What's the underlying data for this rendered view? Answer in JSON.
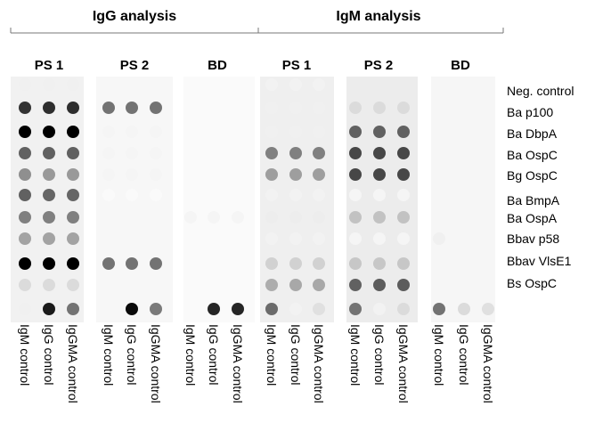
{
  "groups": [
    {
      "title": "IgG analysis"
    },
    {
      "title": "IgM analysis"
    }
  ],
  "strips": [
    {
      "label": "PS 1",
      "background": "#f1f1f1",
      "intensity": [
        [
          0.06,
          0.06,
          0.06
        ],
        [
          0.8,
          0.82,
          0.82
        ],
        [
          1.0,
          1.0,
          1.0
        ],
        [
          0.62,
          0.62,
          0.62
        ],
        [
          0.44,
          0.4,
          0.4
        ],
        [
          0.62,
          0.6,
          0.6
        ],
        [
          0.5,
          0.5,
          0.5
        ],
        [
          0.36,
          0.36,
          0.36
        ],
        [
          1.0,
          1.0,
          1.0
        ],
        [
          0.14,
          0.14,
          0.14
        ],
        [
          0.06,
          0.9,
          0.55
        ]
      ]
    },
    {
      "label": "PS 2",
      "background": "#f7f7f7",
      "intensity": [
        [
          0.0,
          0.0,
          0.0
        ],
        [
          0.55,
          0.55,
          0.55
        ],
        [
          0.04,
          0.04,
          0.04
        ],
        [
          0.04,
          0.04,
          0.04
        ],
        [
          0.04,
          0.04,
          0.04
        ],
        [
          0.02,
          0.02,
          0.02
        ],
        [
          0.0,
          0.0,
          0.0
        ],
        [
          0.0,
          0.0,
          0.0
        ],
        [
          0.55,
          0.55,
          0.55
        ],
        [
          0.0,
          0.0,
          0.0
        ],
        [
          0.0,
          0.96,
          0.52
        ]
      ]
    },
    {
      "label": "BD",
      "background": "#fafafa",
      "intensity": [
        [
          0.0,
          0.0,
          0.0
        ],
        [
          0.0,
          0.0,
          0.0
        ],
        [
          0.0,
          0.0,
          0.0
        ],
        [
          0.0,
          0.0,
          0.0
        ],
        [
          0.0,
          0.0,
          0.0
        ],
        [
          0.0,
          0.0,
          0.0
        ],
        [
          0.04,
          0.04,
          0.04
        ],
        [
          0.0,
          0.0,
          0.0
        ],
        [
          0.0,
          0.0,
          0.0
        ],
        [
          0.0,
          0.0,
          0.0
        ],
        [
          0.0,
          0.85,
          0.85
        ]
      ]
    },
    {
      "label": "PS 1",
      "background": "#efefef",
      "intensity": [
        [
          0.05,
          0.05,
          0.05
        ],
        [
          0.06,
          0.06,
          0.06
        ],
        [
          0.06,
          0.06,
          0.06
        ],
        [
          0.5,
          0.5,
          0.5
        ],
        [
          0.38,
          0.38,
          0.38
        ],
        [
          0.05,
          0.05,
          0.05
        ],
        [
          0.07,
          0.07,
          0.07
        ],
        [
          0.05,
          0.05,
          0.05
        ],
        [
          0.18,
          0.18,
          0.18
        ],
        [
          0.32,
          0.34,
          0.34
        ],
        [
          0.58,
          0.05,
          0.12
        ]
      ]
    },
    {
      "label": "PS 2",
      "background": "#ececec",
      "intensity": [
        [
          0.0,
          0.0,
          0.0
        ],
        [
          0.14,
          0.14,
          0.14
        ],
        [
          0.62,
          0.62,
          0.62
        ],
        [
          0.72,
          0.72,
          0.72
        ],
        [
          0.72,
          0.72,
          0.72
        ],
        [
          0.04,
          0.04,
          0.04
        ],
        [
          0.24,
          0.24,
          0.24
        ],
        [
          0.04,
          0.04,
          0.04
        ],
        [
          0.22,
          0.22,
          0.22
        ],
        [
          0.62,
          0.64,
          0.64
        ],
        [
          0.55,
          0.05,
          0.14
        ]
      ]
    },
    {
      "label": "BD",
      "background": "#f6f6f6",
      "intensity": [
        [
          0.0,
          0.0,
          0.0
        ],
        [
          0.0,
          0.0,
          0.0
        ],
        [
          0.0,
          0.0,
          0.0
        ],
        [
          0.0,
          0.0,
          0.0
        ],
        [
          0.0,
          0.0,
          0.0
        ],
        [
          0.0,
          0.0,
          0.0
        ],
        [
          0.0,
          0.0,
          0.0
        ],
        [
          0.06,
          0.0,
          0.0
        ],
        [
          0.0,
          0.0,
          0.0
        ],
        [
          0.0,
          0.0,
          0.0
        ],
        [
          0.55,
          0.14,
          0.12
        ]
      ]
    }
  ],
  "antigens": [
    "Neg. control",
    "Ba p100",
    "Ba DbpA",
    "Ba OspC",
    "Bg OspC",
    "Ba BmpA",
    "Ba OspA",
    "Bbav p58",
    "Bbav VlsE1",
    "Bs OspC"
  ],
  "controls": [
    "IgM control",
    "IgG control",
    "IgGMA control"
  ]
}
